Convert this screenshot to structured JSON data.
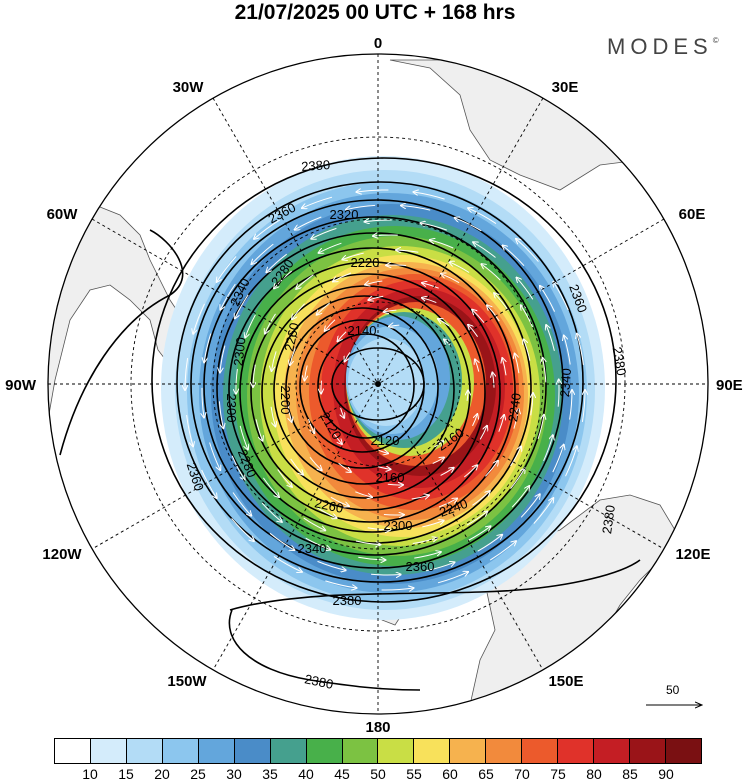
{
  "title": "21/07/2025  00 UTC  + 168 hrs",
  "brand": "MODES",
  "brand_mark": "©",
  "longitude_labels": [
    "0",
    "30E",
    "60E",
    "90E",
    "120E",
    "150E",
    "180",
    "150W",
    "120W",
    "90W",
    "60W",
    "30W"
  ],
  "contour_labels": [
    "2120",
    "2140",
    "2160",
    "2180",
    "2200",
    "2220",
    "2240",
    "2260",
    "2280",
    "2300",
    "2320",
    "2340",
    "2360",
    "2380"
  ],
  "colorbar": {
    "ticks": [
      "10",
      "15",
      "20",
      "25",
      "30",
      "35",
      "40",
      "45",
      "50",
      "55",
      "60",
      "65",
      "70",
      "75",
      "80",
      "85",
      "90"
    ],
    "colors": [
      "#ffffff",
      "#d4ecfb",
      "#b3dcf6",
      "#8cc6ee",
      "#63a6dc",
      "#4a8cc8",
      "#45a08e",
      "#48b04a",
      "#7cc242",
      "#c9de45",
      "#f8e15b",
      "#f6b24e",
      "#f28a3c",
      "#ec5a2c",
      "#e0322a",
      "#c41e24",
      "#9a1418",
      "#7a1012"
    ]
  },
  "wind_scale_label": "50",
  "colors": {
    "land": "#efefef",
    "coast": "#555555",
    "grid": "#000000"
  }
}
